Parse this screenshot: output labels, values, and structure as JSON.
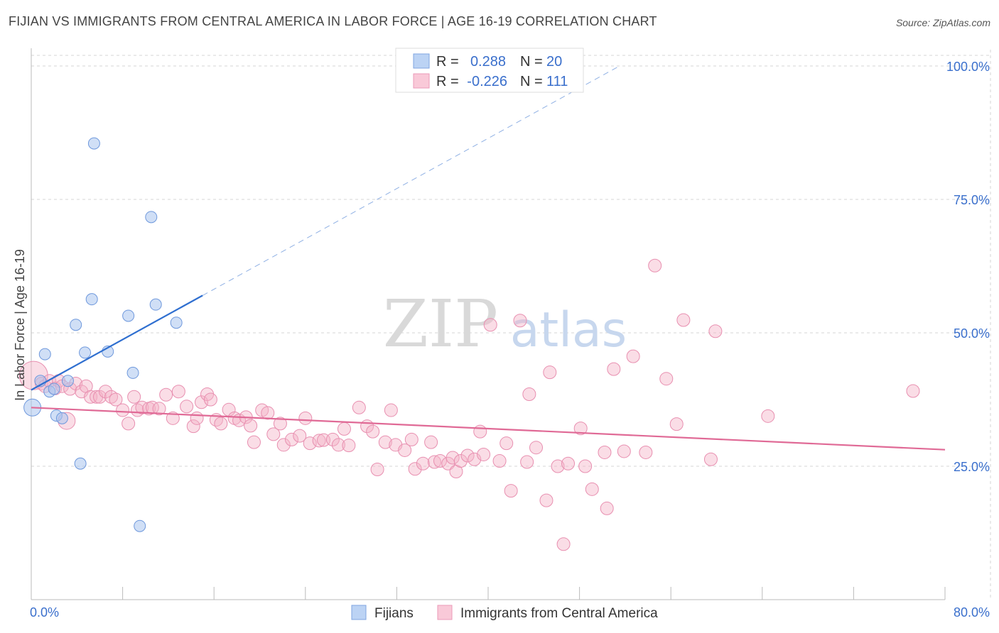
{
  "title": "FIJIAN VS IMMIGRANTS FROM CENTRAL AMERICA IN LABOR FORCE | AGE 16-19 CORRELATION CHART",
  "source": "Source: ZipAtlas.com",
  "watermark": {
    "zip": "ZIP",
    "atlas": "atlas"
  },
  "legend": {
    "r_label": "R =",
    "n_label": "N =",
    "rows": [
      {
        "r": "0.288",
        "n": "20"
      },
      {
        "r": "-0.226",
        "n": "111"
      }
    ]
  },
  "bottom_legend": [
    "Fijians",
    "Immigrants from Central America"
  ],
  "chart_data": {
    "type": "scatter",
    "title": "FIJIAN VS IMMIGRANTS FROM CENTRAL AMERICA IN LABOR FORCE | AGE 16-19 CORRELATION CHART",
    "ylabel": "In Labor Force | Age 16-19",
    "xlim": [
      0,
      80
    ],
    "ylim": [
      0,
      102
    ],
    "x_tick_labels": [
      "0.0%",
      "80.0%"
    ],
    "y_ticks": [
      25,
      50,
      75,
      100
    ],
    "y_tick_labels": [
      "25.0%",
      "50.0%",
      "75.0%",
      "100.0%"
    ],
    "grid": true,
    "colors": {
      "fijians": "#a9c4ee",
      "fijians_line": "#2f6fd0",
      "central_america": "#f4b4c8",
      "central_america_line": "#e06a96"
    },
    "series": [
      {
        "name": "Fijians",
        "r": 0.288,
        "n": 20,
        "points": [
          [
            0.1,
            36
          ],
          [
            0.8,
            41
          ],
          [
            1.2,
            46
          ],
          [
            1.6,
            39
          ],
          [
            2.0,
            39.5
          ],
          [
            2.2,
            34.5
          ],
          [
            2.7,
            34
          ],
          [
            3.2,
            41
          ],
          [
            3.9,
            51.5
          ],
          [
            4.3,
            25.5
          ],
          [
            4.7,
            46.3
          ],
          [
            5.3,
            56.3
          ],
          [
            5.5,
            85.5
          ],
          [
            6.7,
            46.5
          ],
          [
            8.5,
            53.2
          ],
          [
            8.9,
            42.5
          ],
          [
            9.5,
            13.8
          ],
          [
            10.5,
            71.7
          ],
          [
            10.9,
            55.3
          ],
          [
            12.7,
            51.9
          ]
        ],
        "trend": {
          "x": [
            0,
            15
          ],
          "y": [
            39.3,
            57
          ]
        },
        "trend_dashed": {
          "x": [
            15,
            51.5
          ],
          "y": [
            57,
            100
          ]
        }
      },
      {
        "name": "Immigrants from Central America",
        "r": -0.226,
        "n": 111,
        "points": [
          [
            0.2,
            42
          ],
          [
            0.9,
            40.5
          ],
          [
            1.2,
            40
          ],
          [
            1.6,
            41
          ],
          [
            2.1,
            39.6
          ],
          [
            2.4,
            41
          ],
          [
            2.7,
            40
          ],
          [
            3.1,
            33.5
          ],
          [
            3.4,
            39.5
          ],
          [
            3.9,
            40.5
          ],
          [
            4.4,
            39
          ],
          [
            4.8,
            40
          ],
          [
            5.2,
            38
          ],
          [
            5.7,
            38
          ],
          [
            6.0,
            38
          ],
          [
            6.5,
            39
          ],
          [
            7.0,
            38
          ],
          [
            7.4,
            37.5
          ],
          [
            8.0,
            35.5
          ],
          [
            8.5,
            33
          ],
          [
            9.0,
            38
          ],
          [
            9.3,
            35.5
          ],
          [
            9.7,
            36
          ],
          [
            10.3,
            35.8
          ],
          [
            10.6,
            36
          ],
          [
            11.2,
            35.8
          ],
          [
            11.8,
            38.4
          ],
          [
            12.4,
            34
          ],
          [
            12.9,
            39
          ],
          [
            13.6,
            36.2
          ],
          [
            14.2,
            32.5
          ],
          [
            14.5,
            34
          ],
          [
            14.9,
            37
          ],
          [
            15.4,
            38.5
          ],
          [
            15.7,
            37.5
          ],
          [
            16.2,
            33.7
          ],
          [
            16.6,
            33
          ],
          [
            17.3,
            35.6
          ],
          [
            17.8,
            34
          ],
          [
            18.2,
            33.6
          ],
          [
            18.8,
            34.2
          ],
          [
            19.2,
            32.6
          ],
          [
            19.5,
            29.5
          ],
          [
            20.2,
            35.5
          ],
          [
            20.7,
            35
          ],
          [
            21.2,
            31
          ],
          [
            21.8,
            33
          ],
          [
            22.1,
            29
          ],
          [
            22.8,
            30
          ],
          [
            23.5,
            30.7
          ],
          [
            24.0,
            34
          ],
          [
            24.4,
            29.3
          ],
          [
            25.2,
            29.8
          ],
          [
            25.6,
            29.9
          ],
          [
            26.4,
            30
          ],
          [
            26.9,
            29
          ],
          [
            27.4,
            32
          ],
          [
            27.8,
            28.9
          ],
          [
            28.7,
            36
          ],
          [
            29.4,
            32.5
          ],
          [
            29.9,
            31.5
          ],
          [
            30.3,
            24.4
          ],
          [
            31.0,
            29.5
          ],
          [
            31.5,
            35.5
          ],
          [
            31.9,
            29
          ],
          [
            32.7,
            28
          ],
          [
            33.3,
            30
          ],
          [
            33.6,
            24.5
          ],
          [
            34.3,
            25.5
          ],
          [
            35.0,
            29.5
          ],
          [
            35.3,
            25.8
          ],
          [
            35.8,
            26
          ],
          [
            36.5,
            25.5
          ],
          [
            36.9,
            26.6
          ],
          [
            37.2,
            24
          ],
          [
            37.6,
            26
          ],
          [
            38.2,
            27
          ],
          [
            38.8,
            26.3
          ],
          [
            39.3,
            31.5
          ],
          [
            39.6,
            27.2
          ],
          [
            40.2,
            51.5
          ],
          [
            41.0,
            26
          ],
          [
            41.6,
            29.3
          ],
          [
            42.0,
            20.4
          ],
          [
            42.8,
            52.3
          ],
          [
            43.4,
            25.8
          ],
          [
            43.6,
            38.5
          ],
          [
            44.2,
            28.5
          ],
          [
            45.1,
            18.6
          ],
          [
            45.4,
            42.6
          ],
          [
            46.1,
            25
          ],
          [
            46.6,
            10.4
          ],
          [
            47.0,
            25.5
          ],
          [
            48.1,
            32.1
          ],
          [
            48.5,
            25
          ],
          [
            49.1,
            20.7
          ],
          [
            50.2,
            27.6
          ],
          [
            50.4,
            17.1
          ],
          [
            51.0,
            43.2
          ],
          [
            51.9,
            27.8
          ],
          [
            52.7,
            45.6
          ],
          [
            53.8,
            27.6
          ],
          [
            54.6,
            62.6
          ],
          [
            55.6,
            41.4
          ],
          [
            56.5,
            32.9
          ],
          [
            57.1,
            52.4
          ],
          [
            59.5,
            26.3
          ],
          [
            59.9,
            50.3
          ],
          [
            64.5,
            34.4
          ],
          [
            77.2,
            39.1
          ]
        ],
        "trend": {
          "x": [
            0,
            80
          ],
          "y": [
            36,
            28.1
          ]
        }
      }
    ]
  }
}
